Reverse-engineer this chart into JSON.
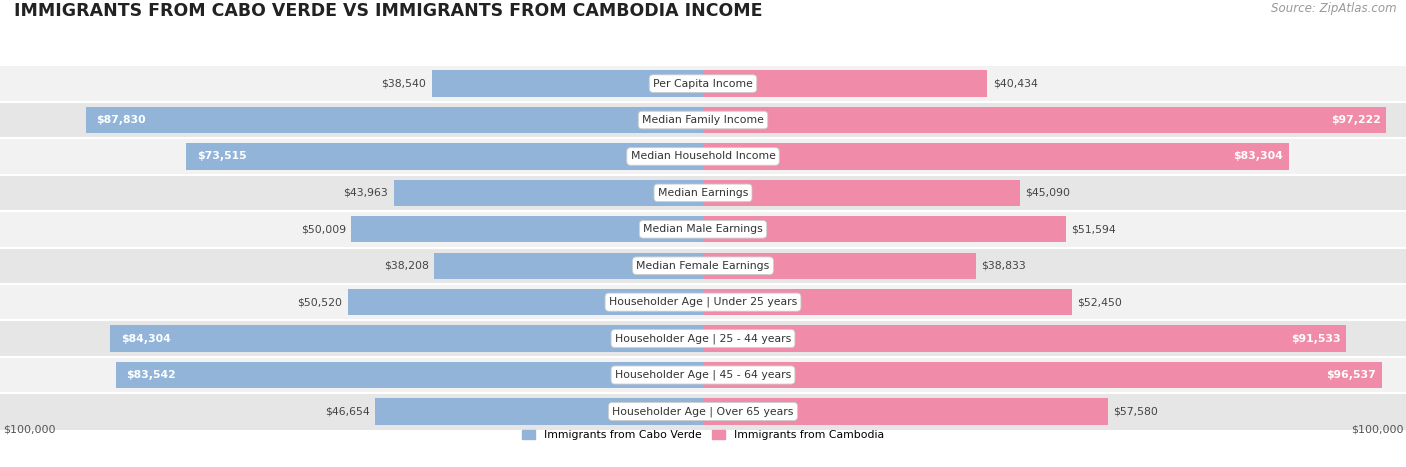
{
  "title": "IMMIGRANTS FROM CABO VERDE VS IMMIGRANTS FROM CAMBODIA INCOME",
  "source": "Source: ZipAtlas.com",
  "categories": [
    "Per Capita Income",
    "Median Family Income",
    "Median Household Income",
    "Median Earnings",
    "Median Male Earnings",
    "Median Female Earnings",
    "Householder Age | Under 25 years",
    "Householder Age | 25 - 44 years",
    "Householder Age | 45 - 64 years",
    "Householder Age | Over 65 years"
  ],
  "cabo_verde": [
    38540,
    87830,
    73515,
    43963,
    50009,
    38208,
    50520,
    84304,
    83542,
    46654
  ],
  "cambodia": [
    40434,
    97222,
    83304,
    45090,
    51594,
    38833,
    52450,
    91533,
    96537,
    57580
  ],
  "cabo_verde_color": "#91b4d8",
  "cambodia_color": "#f08baa",
  "cabo_verde_label": "Immigrants from Cabo Verde",
  "cambodia_label": "Immigrants from Cambodia",
  "row_bg_even": "#f2f2f2",
  "row_bg_odd": "#e6e6e6",
  "max_value": 100000,
  "bar_height": 0.72,
  "title_fontsize": 12.5,
  "source_fontsize": 8.5,
  "label_fontsize": 7.8,
  "value_fontsize": 7.8,
  "axis_label_fontsize": 8,
  "threshold_inside": 0.6
}
